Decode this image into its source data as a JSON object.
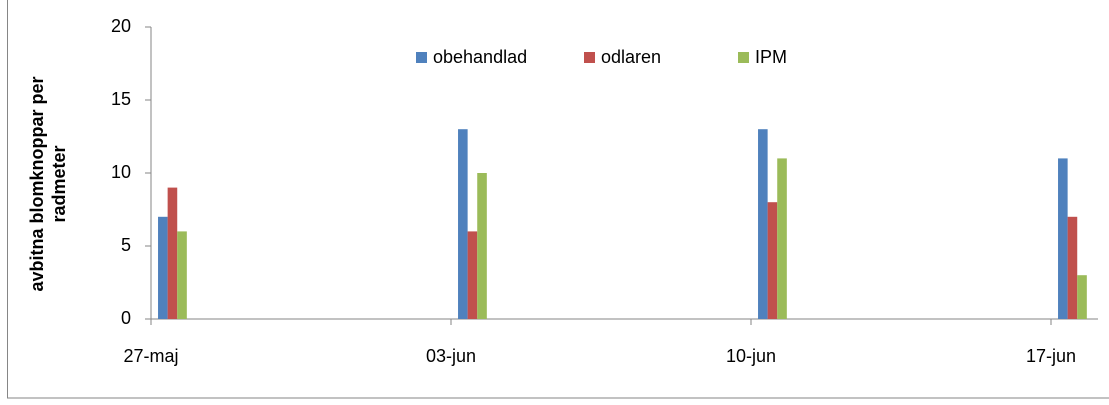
{
  "chart_data": {
    "type": "bar",
    "ylabel": [
      "avbitna blomknoppar per",
      "radmeter"
    ],
    "categories": [
      "27-maj",
      "03-jun",
      "10-jun",
      "17-jun"
    ],
    "series": [
      {
        "name": "obehandlad",
        "color": "#4f81bd",
        "values": [
          7,
          13,
          13,
          11
        ]
      },
      {
        "name": "odlaren",
        "color": "#c0504d",
        "values": [
          9,
          6,
          8,
          7
        ]
      },
      {
        "name": "IPM",
        "color": "#9bbb59",
        "values": [
          6,
          10,
          11,
          3
        ]
      }
    ],
    "ylim": [
      0,
      20
    ],
    "yticks": [
      0,
      5,
      10,
      15,
      20
    ],
    "grid": false,
    "legend": "top"
  }
}
